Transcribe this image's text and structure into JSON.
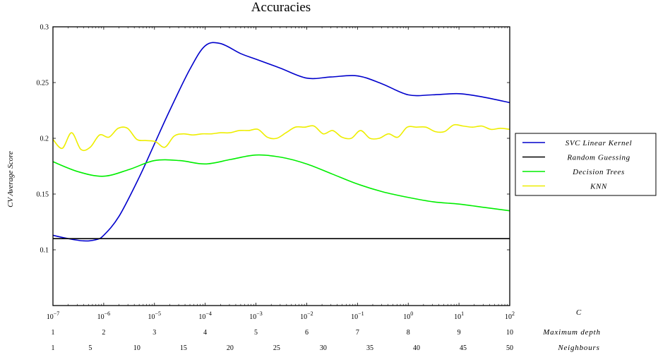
{
  "chart_data": {
    "type": "line",
    "title": "Accuracies",
    "ylabel": "CV Average Score",
    "ylim": [
      0.05,
      0.3
    ],
    "yticks": [
      0.1,
      0.15,
      0.2,
      0.25,
      0.3
    ],
    "ytick_labels": [
      "0.1",
      "0.15",
      "0.2",
      "0.25",
      "0.3"
    ],
    "grid": false,
    "legend_position": "right",
    "x_axes": [
      {
        "name": "C",
        "scale": "log",
        "range": [
          1e-07,
          100
        ],
        "ticks": [
          1e-07,
          1e-06,
          1e-05,
          0.0001,
          0.001,
          0.01,
          0.1,
          1,
          10,
          100
        ],
        "tick_bases": [
          "10",
          "10",
          "10",
          "10",
          "10",
          "10",
          "10",
          "10",
          "10",
          "10"
        ],
        "tick_exponents": [
          "−7",
          "−6",
          "−5",
          "−4",
          "−3",
          "−2",
          "−1",
          "0",
          "1",
          "2"
        ]
      },
      {
        "name": "Maximum depth",
        "scale": "linear",
        "range": [
          1,
          10
        ],
        "ticks": [
          1,
          2,
          3,
          4,
          5,
          6,
          7,
          8,
          9,
          10
        ],
        "tick_labels": [
          "1",
          "2",
          "3",
          "4",
          "5",
          "6",
          "7",
          "8",
          "9",
          "10"
        ]
      },
      {
        "name": "Neighbours",
        "scale": "linear",
        "range": [
          1,
          50
        ],
        "ticks": [
          1,
          5,
          10,
          15,
          20,
          25,
          30,
          35,
          40,
          45,
          50
        ],
        "tick_labels": [
          "1",
          "5",
          "10",
          "15",
          "20",
          "25",
          "30",
          "35",
          "40",
          "45",
          "50"
        ]
      }
    ],
    "series": [
      {
        "name": "SVC Linear Kernel",
        "color": "#0000cc",
        "x_axis": "C",
        "x": [
          1e-07,
          2e-07,
          4e-07,
          7e-07,
          1e-06,
          2e-06,
          5e-06,
          1e-05,
          2e-05,
          5e-05,
          0.0001,
          0.0002,
          0.0005,
          0.001,
          0.003,
          0.01,
          0.03,
          0.1,
          0.3,
          1,
          3,
          10,
          30,
          100
        ],
        "y": [
          0.113,
          0.11,
          0.108,
          0.109,
          0.113,
          0.13,
          0.165,
          0.195,
          0.225,
          0.262,
          0.283,
          0.285,
          0.276,
          0.271,
          0.263,
          0.254,
          0.255,
          0.256,
          0.249,
          0.239,
          0.239,
          0.24,
          0.237,
          0.232
        ]
      },
      {
        "name": "Random Guessing",
        "color": "#000000",
        "x_axis": "C",
        "x": [
          1e-07,
          100
        ],
        "y": [
          0.11,
          0.11
        ]
      },
      {
        "name": "Decision Trees",
        "color": "#00ee00",
        "x_axis": "Maximum depth",
        "x": [
          1,
          1.5,
          2,
          2.5,
          3,
          3.5,
          4,
          4.5,
          5,
          5.5,
          6,
          6.5,
          7,
          7.5,
          8,
          8.5,
          9,
          9.5,
          10
        ],
        "y": [
          0.179,
          0.17,
          0.166,
          0.172,
          0.18,
          0.18,
          0.177,
          0.181,
          0.185,
          0.183,
          0.177,
          0.168,
          0.159,
          0.152,
          0.147,
          0.143,
          0.141,
          0.138,
          0.135
        ]
      },
      {
        "name": "KNN",
        "color": "#eeee00",
        "x_axis": "Neighbours",
        "x": [
          1,
          2,
          3,
          4,
          5,
          6,
          7,
          8,
          9,
          10,
          11,
          12,
          13,
          14,
          15,
          16,
          17,
          18,
          19,
          20,
          21,
          22,
          23,
          24,
          25,
          26,
          27,
          28,
          29,
          30,
          31,
          32,
          33,
          34,
          35,
          36,
          37,
          38,
          39,
          40,
          41,
          42,
          43,
          44,
          45,
          46,
          47,
          48,
          49,
          50
        ],
        "y": [
          0.199,
          0.191,
          0.205,
          0.19,
          0.192,
          0.203,
          0.201,
          0.209,
          0.209,
          0.199,
          0.198,
          0.197,
          0.192,
          0.202,
          0.204,
          0.203,
          0.204,
          0.204,
          0.205,
          0.205,
          0.207,
          0.207,
          0.208,
          0.201,
          0.2,
          0.205,
          0.21,
          0.21,
          0.211,
          0.204,
          0.207,
          0.201,
          0.2,
          0.207,
          0.2,
          0.2,
          0.204,
          0.201,
          0.21,
          0.21,
          0.21,
          0.206,
          0.206,
          0.212,
          0.211,
          0.21,
          0.211,
          0.208,
          0.209,
          0.208
        ]
      }
    ]
  }
}
